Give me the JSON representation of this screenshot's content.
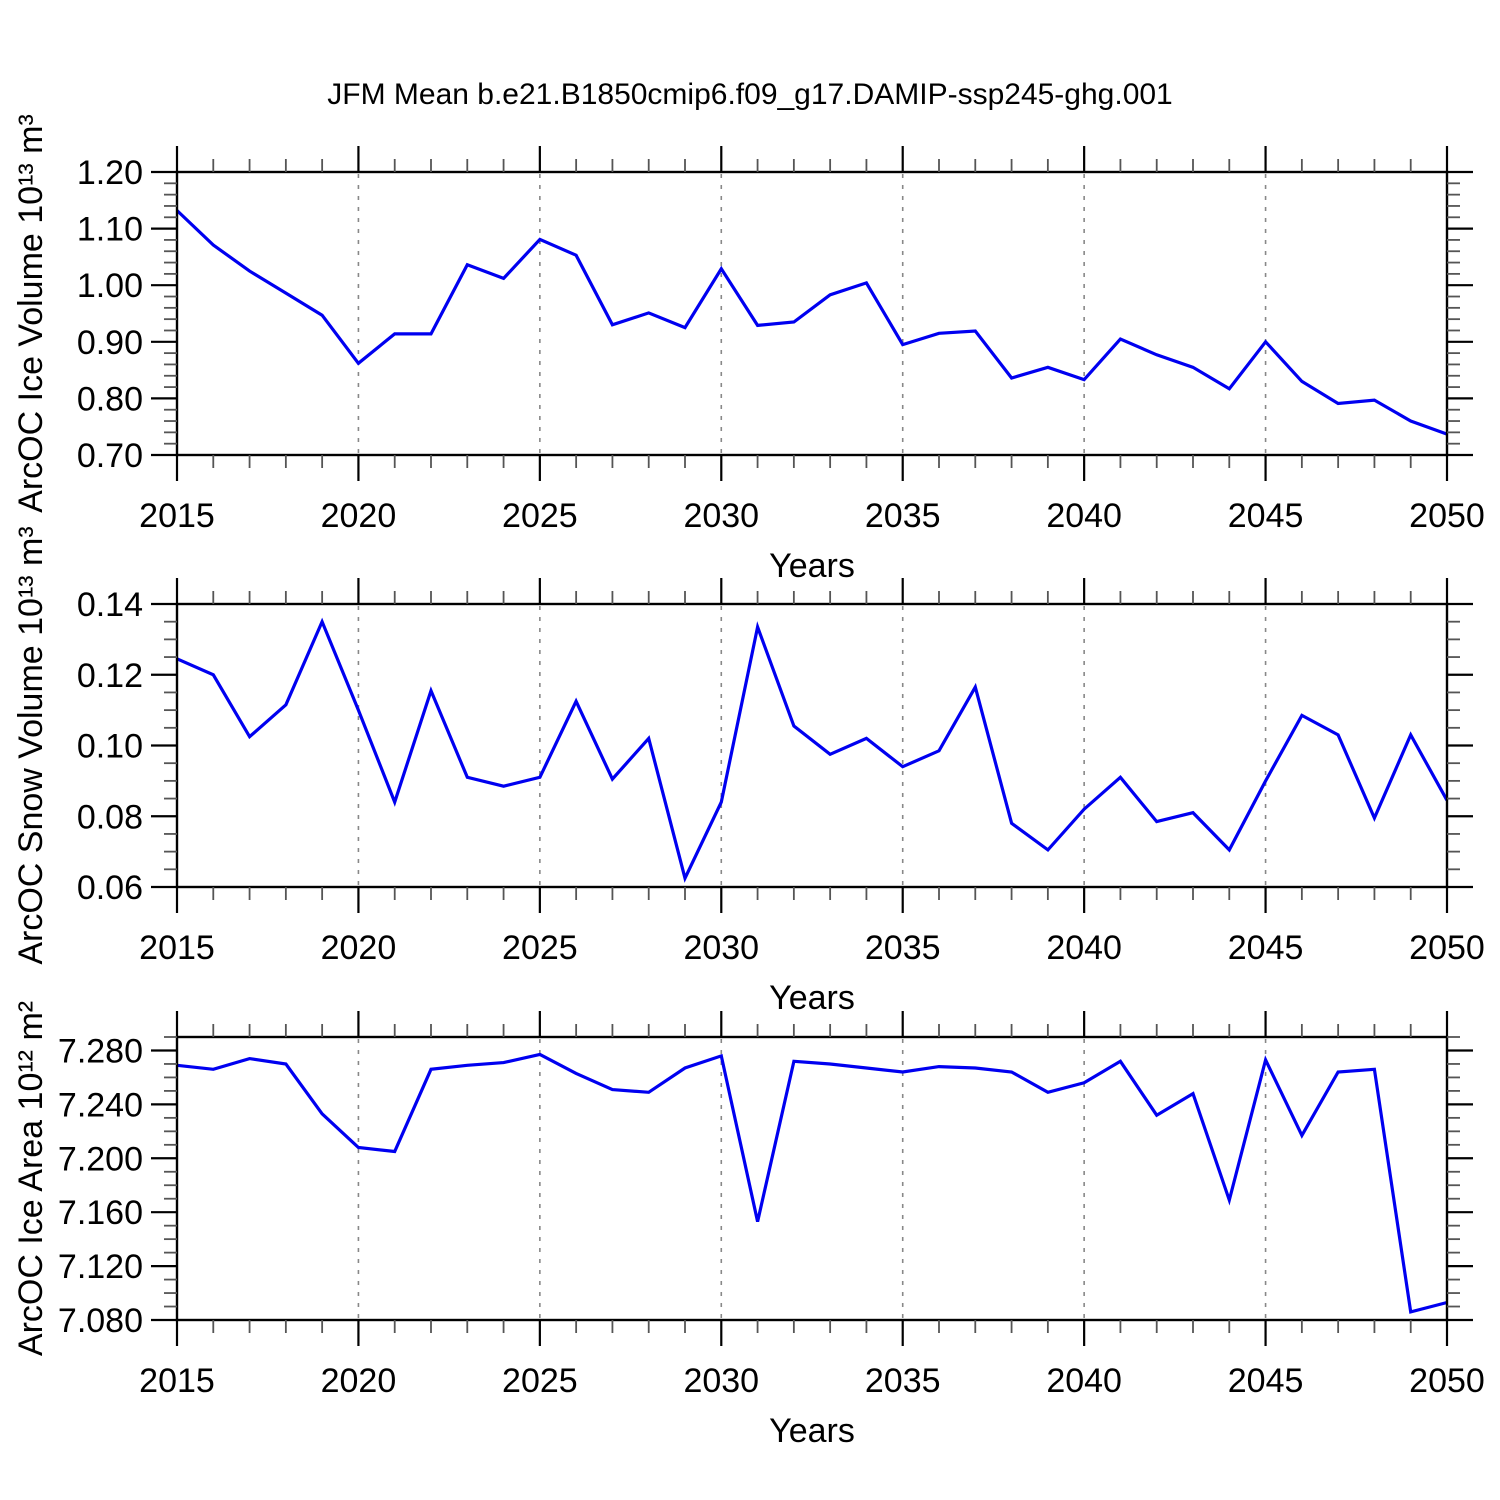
{
  "page": {
    "title": "JFM Mean b.e21.B1850cmip6.f09_g17.DAMIP-ssp245-ghg.001"
  },
  "style": {
    "line_color": "#0000f0",
    "axis_color": "#000000",
    "minor_tick_color": "#555555",
    "grid_color": "#888888",
    "background": "#ffffff"
  },
  "chart_data": [
    {
      "id": "ice-volume",
      "type": "line",
      "title": "JFM Mean b.e21.B1850cmip6.f09_g17.DAMIP-ssp245-ghg.001",
      "xlabel": "Years",
      "ylabel": "ArcOC Ice Volume 10¹³ m³",
      "xlim": [
        2015,
        2050
      ],
      "ylim": [
        0.7,
        1.2
      ],
      "xticks": [
        2015,
        2020,
        2025,
        2030,
        2035,
        2040,
        2045,
        2050
      ],
      "xtick_labels": [
        "2015",
        "2020",
        "2025",
        "2030",
        "2035",
        "2040",
        "2045",
        "2050"
      ],
      "x_minor_step": 1,
      "yticks": [
        0.7,
        0.8,
        0.9,
        1.0,
        1.1,
        1.2
      ],
      "ytick_labels": [
        "0.70",
        "0.80",
        "0.90",
        "1.00",
        "1.10",
        "1.20"
      ],
      "y_minor_step": 0.02,
      "grid_x": [
        2020,
        2025,
        2030,
        2035,
        2040,
        2045
      ],
      "grid": "vertical-dashed",
      "legend": "none",
      "x": [
        2015,
        2016,
        2017,
        2018,
        2019,
        2020,
        2021,
        2022,
        2023,
        2024,
        2025,
        2026,
        2027,
        2028,
        2029,
        2030,
        2031,
        2032,
        2033,
        2034,
        2035,
        2036,
        2037,
        2038,
        2039,
        2040,
        2041,
        2042,
        2043,
        2044,
        2045,
        2046,
        2047,
        2048,
        2049,
        2050
      ],
      "values": [
        1.132,
        1.071,
        1.025,
        0.986,
        0.947,
        0.862,
        0.914,
        0.914,
        1.036,
        1.012,
        1.081,
        1.053,
        0.93,
        0.951,
        0.925,
        1.029,
        0.929,
        0.935,
        0.983,
        1.004,
        0.895,
        0.915,
        0.919,
        0.836,
        0.855,
        0.833,
        0.905,
        0.877,
        0.855,
        0.817,
        0.9,
        0.83,
        0.791,
        0.797,
        0.76,
        0.737
      ]
    },
    {
      "id": "snow-volume",
      "type": "line",
      "title": "",
      "xlabel": "Years",
      "ylabel": "ArcOC Snow Volume 10¹³ m³",
      "xlim": [
        2015,
        2050
      ],
      "ylim": [
        0.06,
        0.14
      ],
      "xticks": [
        2015,
        2020,
        2025,
        2030,
        2035,
        2040,
        2045,
        2050
      ],
      "xtick_labels": [
        "2015",
        "2020",
        "2025",
        "2030",
        "2035",
        "2040",
        "2045",
        "2050"
      ],
      "x_minor_step": 1,
      "yticks": [
        0.06,
        0.08,
        0.1,
        0.12,
        0.14
      ],
      "ytick_labels": [
        "0.06",
        "0.08",
        "0.10",
        "0.12",
        "0.14"
      ],
      "y_minor_step": 0.005,
      "grid_x": [
        2020,
        2025,
        2030,
        2035,
        2040,
        2045
      ],
      "grid": "vertical-dashed",
      "legend": "none",
      "x": [
        2015,
        2016,
        2017,
        2018,
        2019,
        2020,
        2021,
        2022,
        2023,
        2024,
        2025,
        2026,
        2027,
        2028,
        2029,
        2030,
        2031,
        2032,
        2033,
        2034,
        2035,
        2036,
        2037,
        2038,
        2039,
        2040,
        2041,
        2042,
        2043,
        2044,
        2045,
        2046,
        2047,
        2048,
        2049,
        2050
      ],
      "values": [
        0.1245,
        0.12,
        0.1025,
        0.1115,
        0.135,
        0.11,
        0.084,
        0.1155,
        0.091,
        0.0885,
        0.091,
        0.1125,
        0.0905,
        0.102,
        0.0625,
        0.084,
        0.1335,
        0.1055,
        0.0975,
        0.102,
        0.094,
        0.0985,
        0.1165,
        0.078,
        0.0705,
        0.082,
        0.091,
        0.0785,
        0.081,
        0.0705,
        0.09,
        0.1085,
        0.103,
        0.0795,
        0.103,
        0.0845
      ]
    },
    {
      "id": "ice-area",
      "type": "line",
      "title": "",
      "xlabel": "Years",
      "ylabel": "ArcOC Ice Area 10¹² m²",
      "xlim": [
        2015,
        2050
      ],
      "ylim": [
        7.08,
        7.29
      ],
      "xticks": [
        2015,
        2020,
        2025,
        2030,
        2035,
        2040,
        2045,
        2050
      ],
      "xtick_labels": [
        "2015",
        "2020",
        "2025",
        "2030",
        "2035",
        "2040",
        "2045",
        "2050"
      ],
      "x_minor_step": 1,
      "yticks": [
        7.08,
        7.12,
        7.16,
        7.2,
        7.24,
        7.28
      ],
      "ytick_labels": [
        "7.080",
        "7.120",
        "7.160",
        "7.200",
        "7.240",
        "7.280"
      ],
      "y_minor_step": 0.01,
      "grid_x": [
        2020,
        2025,
        2030,
        2035,
        2040,
        2045
      ],
      "grid": "vertical-dashed",
      "legend": "none",
      "x": [
        2015,
        2016,
        2017,
        2018,
        2019,
        2020,
        2021,
        2022,
        2023,
        2024,
        2025,
        2026,
        2027,
        2028,
        2029,
        2030,
        2031,
        2032,
        2033,
        2034,
        2035,
        2036,
        2037,
        2038,
        2039,
        2040,
        2041,
        2042,
        2043,
        2044,
        2045,
        2046,
        2047,
        2048,
        2049,
        2050
      ],
      "values": [
        7.269,
        7.266,
        7.274,
        7.27,
        7.233,
        7.208,
        7.205,
        7.266,
        7.269,
        7.271,
        7.277,
        7.263,
        7.251,
        7.249,
        7.267,
        7.276,
        7.153,
        7.272,
        7.27,
        7.267,
        7.264,
        7.268,
        7.267,
        7.264,
        7.249,
        7.256,
        7.272,
        7.232,
        7.248,
        7.169,
        7.273,
        7.217,
        7.264,
        7.266,
        7.086,
        7.093
      ]
    }
  ]
}
